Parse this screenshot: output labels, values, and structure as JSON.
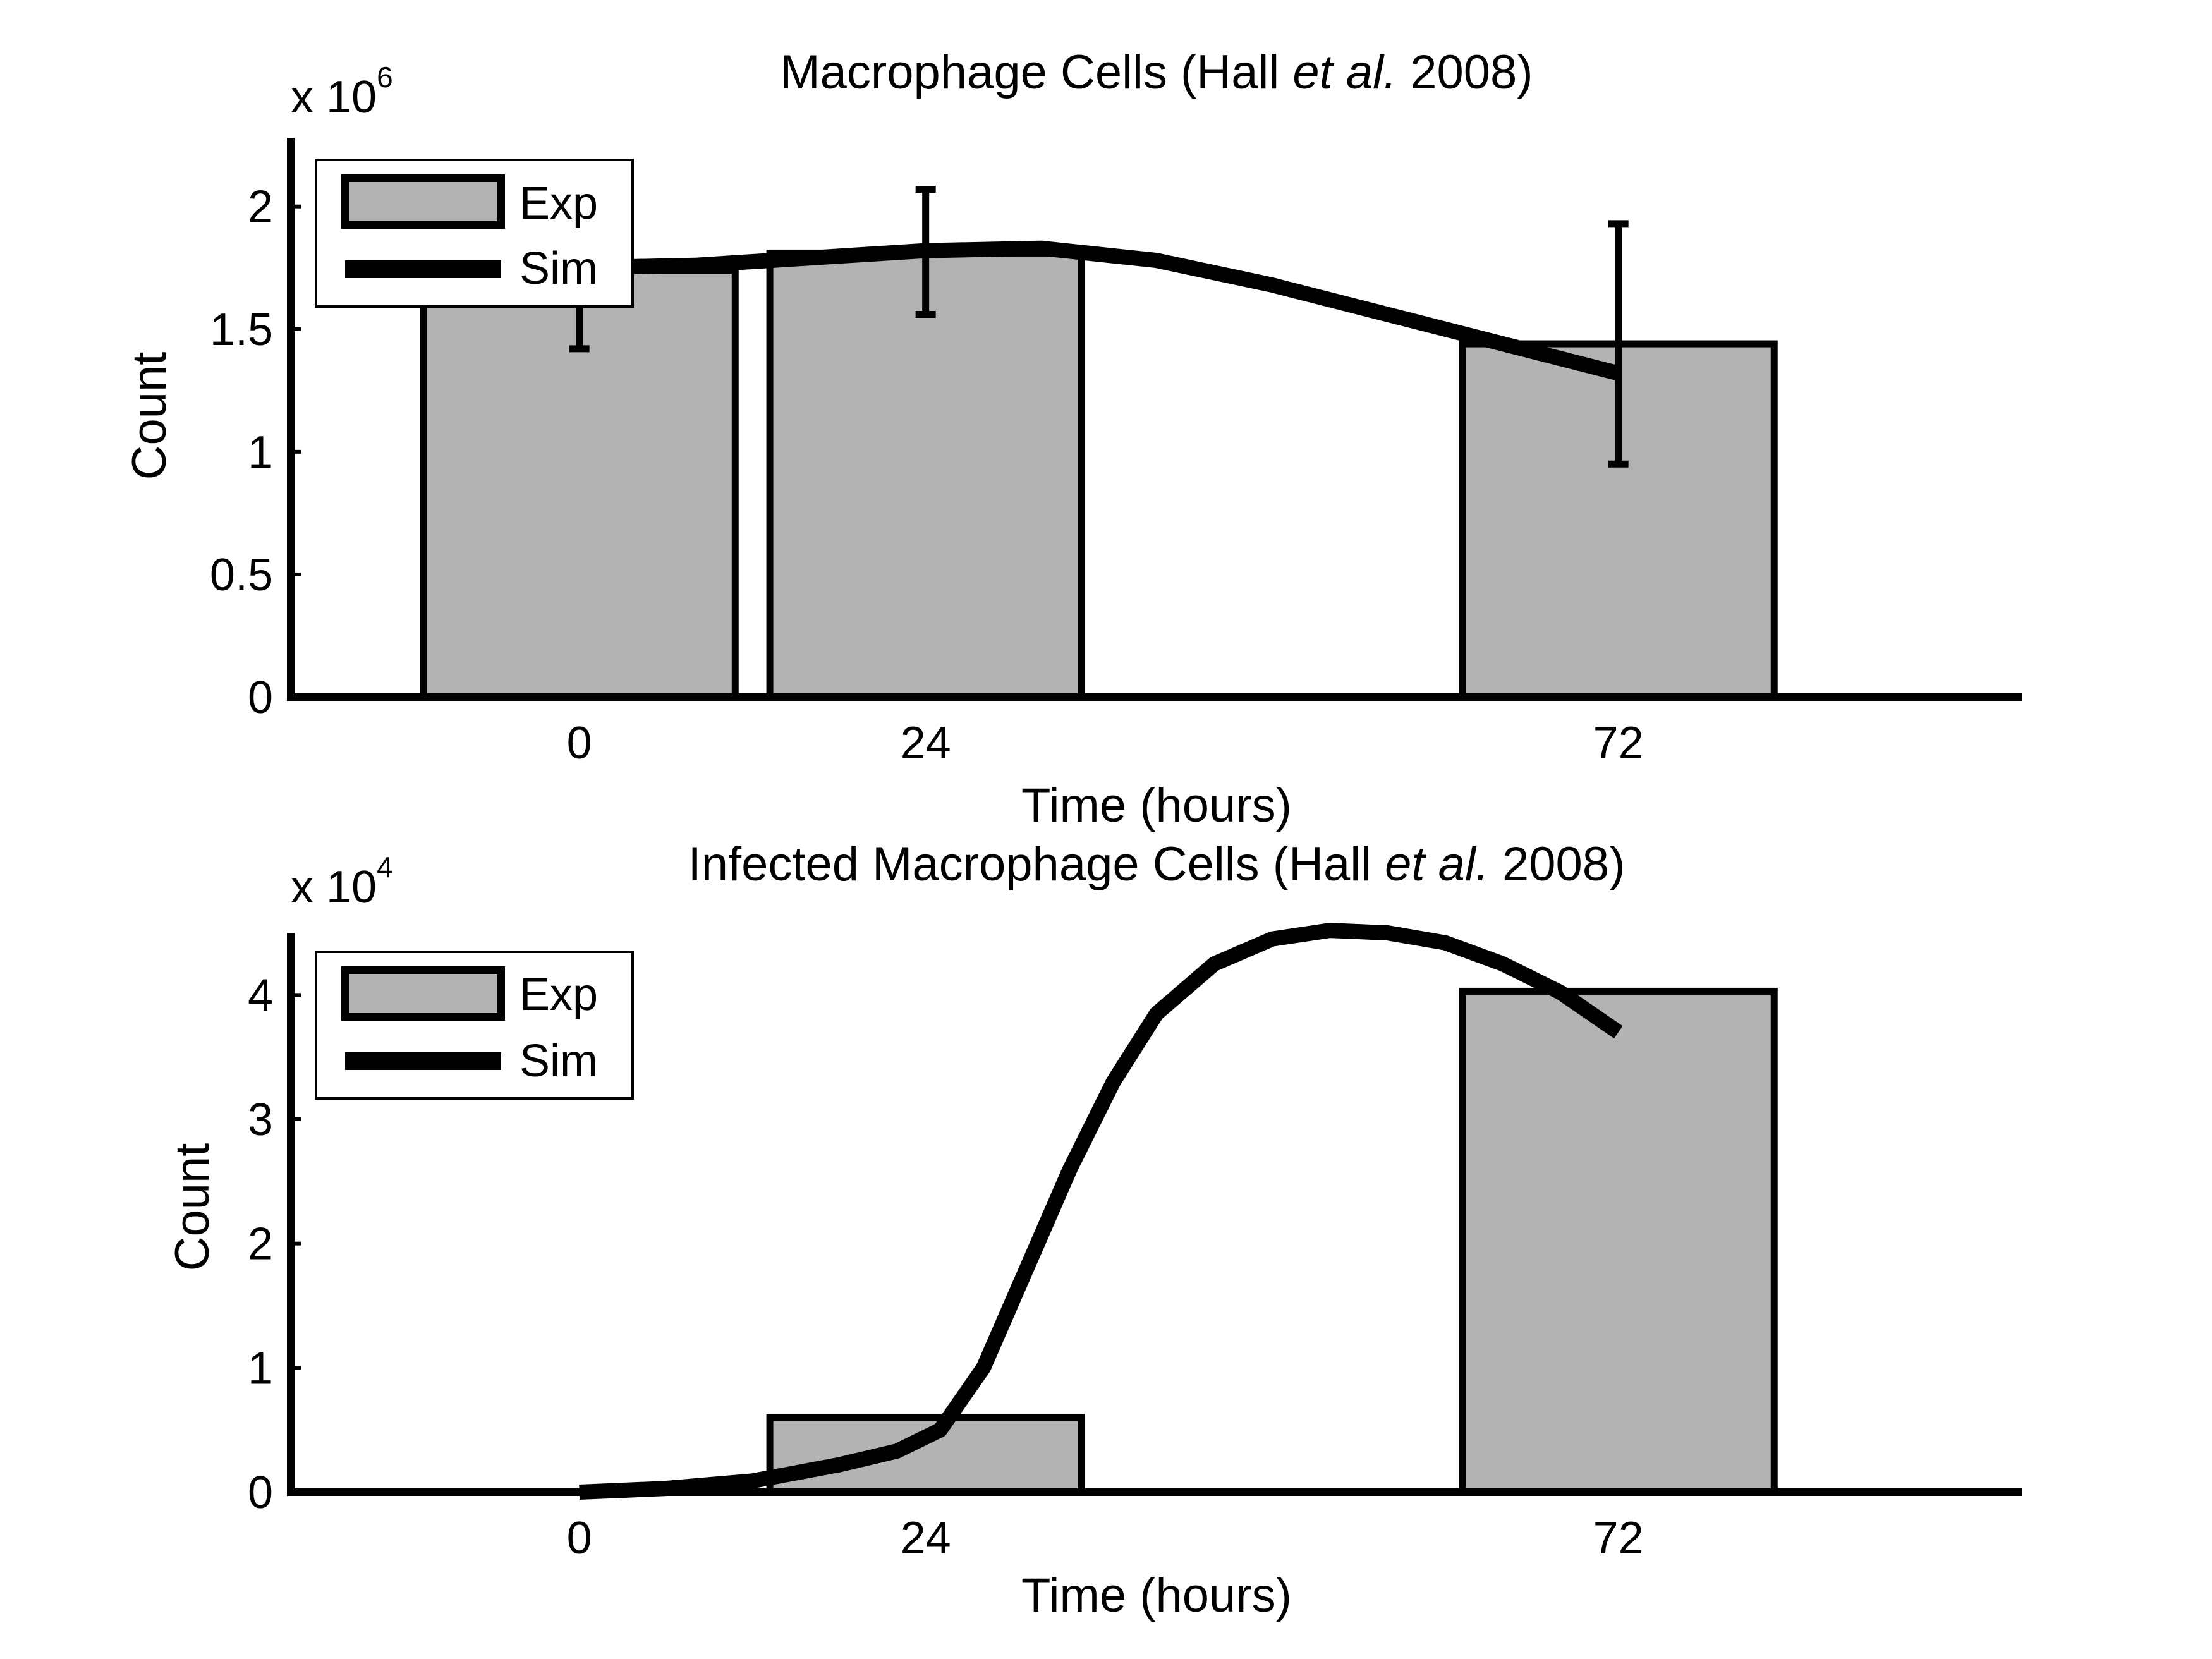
{
  "chart_data": [
    {
      "type": "bar",
      "title": {
        "pre": "Macrophage Cells (Hall ",
        "italic": "et al.",
        "post": " 2008)"
      },
      "xlabel": "Time (hours)",
      "ylabel": "Count",
      "multiplier": {
        "base": "x 10",
        "exp": "6"
      },
      "x_ticks": [
        "0",
        "24",
        "72"
      ],
      "y_ticks": [
        "0",
        "0.5",
        "1",
        "1.5",
        "2"
      ],
      "y_tick_values": [
        0,
        0.5,
        1,
        1.5,
        2
      ],
      "xlim": [
        -20,
        100
      ],
      "ylim": [
        0,
        2.28
      ],
      "legend": {
        "position": "top-left",
        "entries": [
          "Exp",
          "Sim"
        ]
      },
      "series": [
        {
          "name": "Exp",
          "kind": "bar",
          "bar_width_hours": 21.6,
          "points": [
            {
              "x": 0,
              "y": 1.74,
              "err_low": 1.42,
              "err_high": null
            },
            {
              "x": 24,
              "y": 1.81,
              "err_low": 1.56,
              "err_high": 2.07
            },
            {
              "x": 72,
              "y": 1.44,
              "err_low": 0.95,
              "err_high": 1.93
            }
          ]
        },
        {
          "name": "Sim",
          "kind": "line",
          "x": [
            0,
            8,
            16,
            24,
            32,
            40,
            48,
            56,
            64,
            72
          ],
          "y": [
            1.75,
            1.76,
            1.79,
            1.82,
            1.83,
            1.78,
            1.68,
            1.56,
            1.44,
            1.32
          ]
        }
      ]
    },
    {
      "type": "bar",
      "title": {
        "pre": "Infected Macrophage Cells (Hall ",
        "italic": "et al.",
        "post": " 2008)"
      },
      "xlabel": "Time (hours)",
      "ylabel": "Count",
      "multiplier": {
        "base": "x 10",
        "exp": "4"
      },
      "x_ticks": [
        "0",
        "24",
        "72"
      ],
      "y_ticks": [
        "0",
        "1",
        "2",
        "3",
        "4"
      ],
      "y_tick_values": [
        0,
        1,
        2,
        3,
        4
      ],
      "xlim": [
        -20,
        100
      ],
      "ylim": [
        0,
        4.5
      ],
      "legend": {
        "position": "top-left",
        "entries": [
          "Exp",
          "Sim"
        ]
      },
      "series": [
        {
          "name": "Exp",
          "kind": "bar",
          "bar_width_hours": 21.6,
          "points": [
            {
              "x": 0,
              "y": 0,
              "err_low": null,
              "err_high": null
            },
            {
              "x": 24,
              "y": 0.6,
              "err_low": null,
              "err_high": null
            },
            {
              "x": 72,
              "y": 4.03,
              "err_low": null,
              "err_high": null
            }
          ]
        },
        {
          "name": "Sim",
          "kind": "line",
          "x": [
            0,
            6,
            12,
            18,
            22,
            25,
            28,
            31,
            34,
            37,
            40,
            44,
            48,
            52,
            56,
            60,
            64,
            68,
            72
          ],
          "y": [
            0.0,
            0.03,
            0.09,
            0.22,
            0.33,
            0.5,
            1.0,
            1.8,
            2.6,
            3.3,
            3.85,
            4.25,
            4.45,
            4.52,
            4.5,
            4.42,
            4.25,
            4.02,
            3.7
          ]
        }
      ]
    }
  ]
}
